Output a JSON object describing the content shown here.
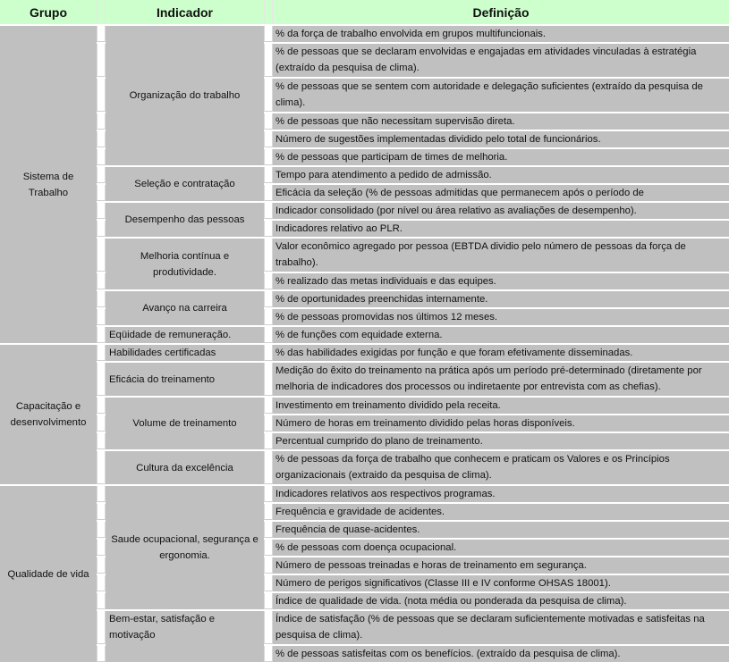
{
  "header": {
    "grupo": "Grupo",
    "indicador": "Indicador",
    "definicao": "Definição"
  },
  "colors": {
    "header_bg": "#ccffcc",
    "cell_bg": "#c0c0c0"
  },
  "groups": [
    {
      "label": "Sistema de Trabalho",
      "rows": [
        1,
        15
      ]
    },
    {
      "label": "Capacitação e desenvolvimento",
      "rows": [
        16,
        21
      ]
    },
    {
      "label": "Qualidade de vida",
      "rows": [
        22,
        30
      ]
    }
  ],
  "indicators": [
    {
      "label": "Organização do trabalho",
      "rows": [
        1,
        6
      ],
      "align": "center"
    },
    {
      "label": "Seleção e contratação",
      "rows": [
        7,
        8
      ],
      "align": "center"
    },
    {
      "label": "Desempenho das pessoas",
      "rows": [
        9,
        10
      ],
      "align": "center"
    },
    {
      "label": "Melhoria contínua e produtividade.",
      "rows": [
        11,
        12
      ],
      "align": "center"
    },
    {
      "label": "Avanço na carreira",
      "rows": [
        13,
        14
      ],
      "align": "center"
    },
    {
      "label": "Eqüidade de remuneração.",
      "rows": [
        15,
        15
      ],
      "align": "left"
    },
    {
      "label": "Habilidades certificadas",
      "rows": [
        16,
        16
      ],
      "align": "left"
    },
    {
      "label": "Eficácia do treinamento",
      "rows": [
        17,
        17
      ],
      "align": "left"
    },
    {
      "label": "Volume de treinamento",
      "rows": [
        18,
        20
      ],
      "align": "center"
    },
    {
      "label": "Cultura da excelência",
      "rows": [
        21,
        21
      ],
      "align": "center"
    },
    {
      "label": "Saude ocupacional, segurança e ergonomia.",
      "rows": [
        22,
        28
      ],
      "align": "center"
    },
    {
      "label": "Bem-estar, satisfação e motivação",
      "rows": [
        29,
        30
      ],
      "align": "left-top"
    }
  ],
  "definitions": [
    {
      "text": "% da força de trabalho envolvida em grupos multifuncionais.",
      "lines": 1
    },
    {
      "text": " % de pessoas que se declaram envolvidas e engajadas em atividades vinculadas à estratégia (extraído da pesquisa de clima).",
      "lines": 2
    },
    {
      "text": "% de pessoas que se sentem com autoridade e delegação suficientes (extraído da pesquisa de clima).",
      "lines": 2
    },
    {
      "text": "% de pessoas que não necessitam supervisão direta.",
      "lines": 1
    },
    {
      "text": "Número de sugestões implementadas dividido pelo total de funcionários.",
      "lines": 1
    },
    {
      "text": "% de pessoas que participam de times de melhoria.",
      "lines": 1
    },
    {
      "text": "Tempo para atendimento a pedido de admissão.",
      "lines": 1
    },
    {
      "text": "Eficácia da seleção (% de pessoas admitidas que permanecem após o período de",
      "lines": 1
    },
    {
      "text": "Indicador consolidado (por nível ou área relativo as avaliações de desempenho).",
      "lines": 1
    },
    {
      "text": "Indicadores relativo ao PLR.",
      "lines": 1
    },
    {
      "text": "Valor econômico agregado por pessoa (EBTDA dividio pelo número de pessoas da força de trabalho).",
      "lines": 2
    },
    {
      "text": "% realizado das metas individuais e das equipes.",
      "lines": 1
    },
    {
      "text": "% de oportunidades preenchidas internamente.",
      "lines": 1
    },
    {
      "text": "% de pessoas promovidas nos últimos 12 meses.",
      "lines": 1
    },
    {
      "text": "% de funções com equidade externa.",
      "lines": 1
    },
    {
      "text": "% das habilidades exigidas por função e que foram efetivamente disseminadas.",
      "lines": 1
    },
    {
      "text": "Medição do êxito do treinamento na prática após um período pré-determinado (diretamente por melhoria de indicadores dos processos ou indiretaente por entrevista com as chefias).",
      "lines": 2
    },
    {
      "text": "Investimento em treinamento dividido pela receita.",
      "lines": 1
    },
    {
      "text": "Número de horas em treinamento dividido pelas horas disponíveis.",
      "lines": 1
    },
    {
      "text": "Percentual cumprido do plano de treinamento.",
      "lines": 1
    },
    {
      "text": "% de pessoas da força de trabalho que conhecem e praticam os Valores e os Princípios organizacionais (extraido da pesquisa de clima).",
      "lines": 2
    },
    {
      "text": "Indicadores relativos aos respectivos programas.",
      "lines": 1
    },
    {
      "text": "Frequência e gravidade de acidentes.",
      "lines": 1
    },
    {
      "text": "Frequência de quase-acidentes.",
      "lines": 1
    },
    {
      "text": "% de pessoas com doença ocupacional.",
      "lines": 1
    },
    {
      "text": "Número de pessoas treinadas e horas de treinamento em segurança.",
      "lines": 1
    },
    {
      "text": "Número de perigos significativos (Classe III e IV conforme OHSAS 18001).",
      "lines": 1
    },
    {
      "text": "Índice de qualidade de vida. (nota média ou ponderada da pesquisa de clima).",
      "lines": 1
    },
    {
      "text": "Índice de satisfação (% de pessoas que se declaram suficientemente motivadas e satisfeitas na pesquisa de clima).",
      "lines": 2
    },
    {
      "text": "% de pessoas satisfeitas com os benefícios. (extraído da pesquisa de clima).",
      "lines": 1
    }
  ]
}
